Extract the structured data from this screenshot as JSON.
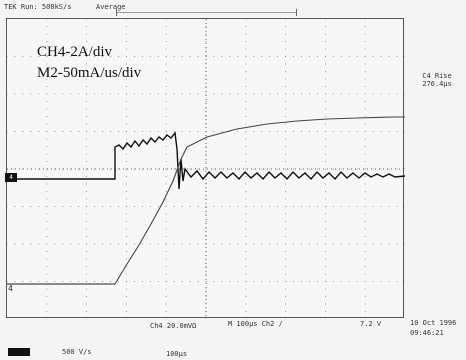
{
  "status": {
    "left": "TEK Run: 500kS/s",
    "mode": "Average"
  },
  "annotations": {
    "ch4": "CH4-2A/div",
    "m2": "M2-50mA/us/div"
  },
  "markers": {
    "ch4": "4",
    "m2": "4"
  },
  "measurement": {
    "label": "C4 Rise",
    "value": "276.4μs"
  },
  "bottom": {
    "ch4_scale": "Ch4  20.0mVΩ",
    "m_scale": "M  100μs  Ch2 ∕",
    "trigger_level": "7.2 V",
    "sample_rate": "500 V/s",
    "m2_time": "100μs",
    "date": "10 Oct 1996",
    "time": "09:46:21"
  },
  "colors": {
    "background": "#f4f4f4",
    "trace": "#111111",
    "grid": "#222222"
  }
}
